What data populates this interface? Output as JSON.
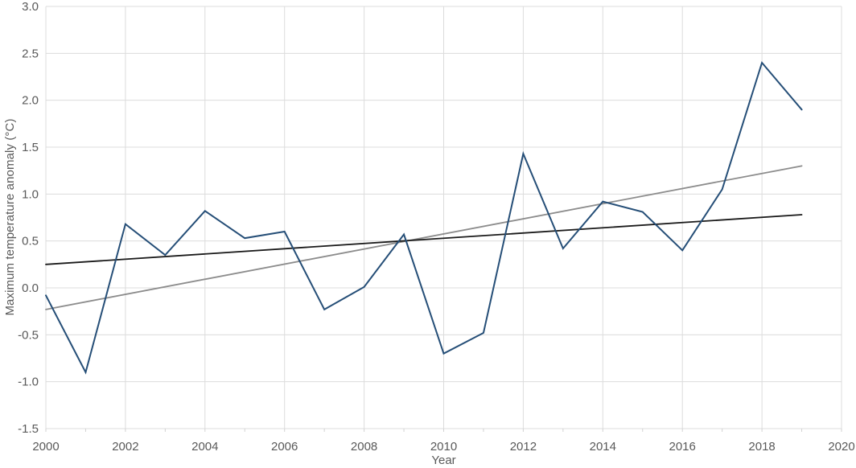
{
  "chart_data": {
    "type": "line",
    "title": "",
    "xlabel": "Year",
    "ylabel": "Maximum temperature anomaly (°C)",
    "x": [
      2000,
      2001,
      2002,
      2003,
      2004,
      2005,
      2006,
      2007,
      2008,
      2009,
      2010,
      2011,
      2012,
      2013,
      2014,
      2015,
      2016,
      2017,
      2018,
      2019
    ],
    "series": [
      {
        "name": "Maximum temperature anomaly",
        "color": "#254e77",
        "stroke_width": 2,
        "values": [
          -0.08,
          -0.9,
          0.68,
          0.35,
          0.82,
          0.53,
          0.6,
          -0.23,
          0.01,
          0.57,
          -0.7,
          -0.48,
          1.43,
          0.42,
          0.92,
          0.81,
          0.4,
          1.05,
          2.4,
          1.9
        ]
      }
    ],
    "trend_lines": [
      {
        "name": "linear-trend-gray",
        "color": "#8c8c8c",
        "stroke_width": 1.8,
        "x_start": 2000,
        "y_start": -0.23,
        "x_end": 2019,
        "y_end": 1.3
      },
      {
        "name": "reference-trend-black",
        "color": "#1a1a1a",
        "stroke_width": 1.8,
        "x_start": 2000,
        "y_start": 0.25,
        "x_end": 2019,
        "y_end": 0.78
      }
    ],
    "xlim": [
      2000,
      2020
    ],
    "ylim": [
      -1.5,
      3.0
    ],
    "x_tick_labels": [
      "2000",
      "2002",
      "2004",
      "2006",
      "2008",
      "2010",
      "2012",
      "2014",
      "2016",
      "2018",
      "2020"
    ],
    "y_tick_labels": [
      "3.0",
      "2.5",
      "2.0",
      "1.5",
      "1.0",
      "0.5",
      "0.0",
      "-0.5",
      "-1.0",
      "-1.5"
    ],
    "x_minor_tick_step": 1,
    "grid": "on",
    "legend": "none",
    "gridline_color": "#dcdcdc",
    "tick_color": "#d2d2d2",
    "tick_label_color": "#595959",
    "axis_title_color": "#595959"
  }
}
